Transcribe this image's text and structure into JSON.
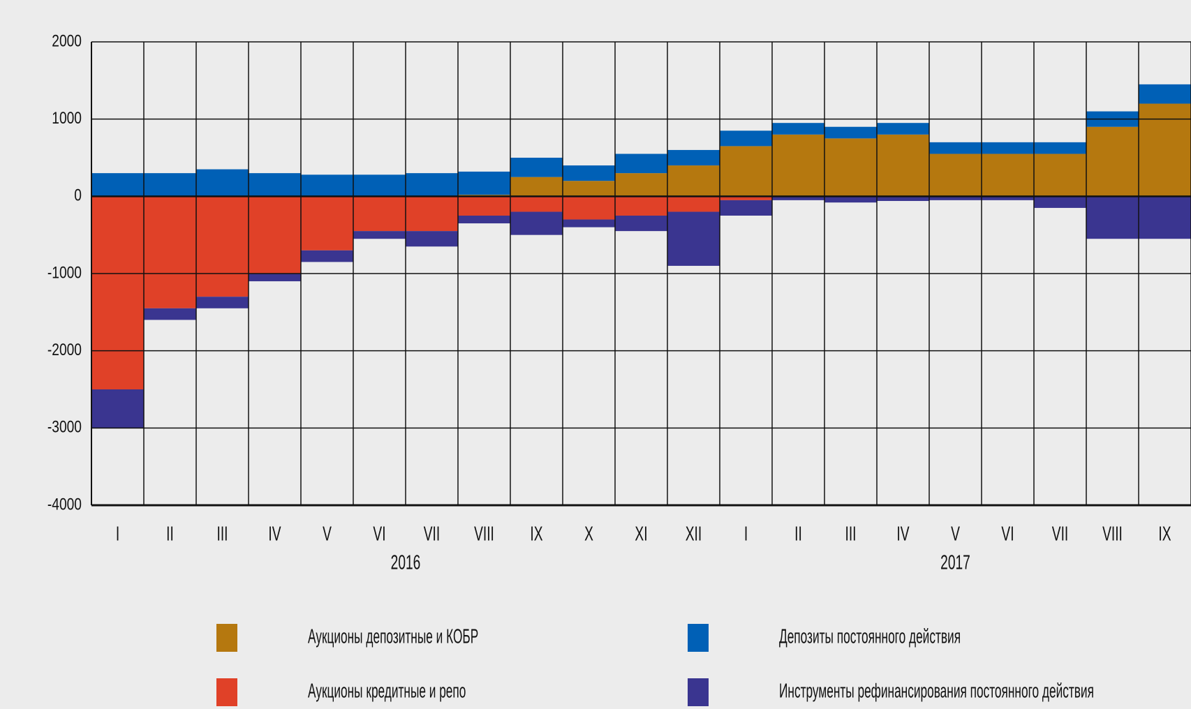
{
  "chart_data": {
    "type": "stacked_bar",
    "categories": [
      "I",
      "II",
      "III",
      "IV",
      "V",
      "VI",
      "VII",
      "VIII",
      "IX",
      "X",
      "XI",
      "XII",
      "I",
      "II",
      "III",
      "IV",
      "V",
      "VI",
      "VII",
      "VIII",
      "IX"
    ],
    "years": [
      "2016",
      "2017"
    ],
    "series": [
      {
        "name": "Аукционы депозитные и КОБР",
        "color": "#b5780f",
        "values": [
          0,
          0,
          0,
          0,
          0,
          0,
          0,
          20,
          250,
          200,
          300,
          400,
          650,
          800,
          750,
          800,
          550,
          550,
          550,
          900,
          1200
        ]
      },
      {
        "name": "Депозиты постоянного действия",
        "color": "#0060b6",
        "values": [
          300,
          300,
          350,
          300,
          280,
          280,
          300,
          300,
          250,
          200,
          250,
          200,
          200,
          150,
          150,
          150,
          150,
          150,
          150,
          200,
          250
        ]
      },
      {
        "name": "Аукционы кредитные и репо",
        "color": "#e04128",
        "values": [
          -2500,
          -1450,
          -1300,
          -1000,
          -700,
          -450,
          -450,
          -250,
          -200,
          -300,
          -250,
          -200,
          -50,
          0,
          0,
          0,
          0,
          0,
          0,
          0,
          0
        ]
      },
      {
        "name": "Инструменты рефинансирования постоянного действия",
        "color": "#3a3590",
        "values": [
          -500,
          -150,
          -150,
          -100,
          -150,
          -100,
          -200,
          -100,
          -300,
          -100,
          -200,
          -700,
          -200,
          -50,
          -80,
          -60,
          -50,
          -50,
          -150,
          -550,
          -550
        ]
      }
    ],
    "ylim": [
      -4000,
      2000
    ],
    "yticks": [
      -4000,
      -3000,
      -2000,
      -1000,
      0,
      1000,
      2000
    ],
    "grid": true
  }
}
